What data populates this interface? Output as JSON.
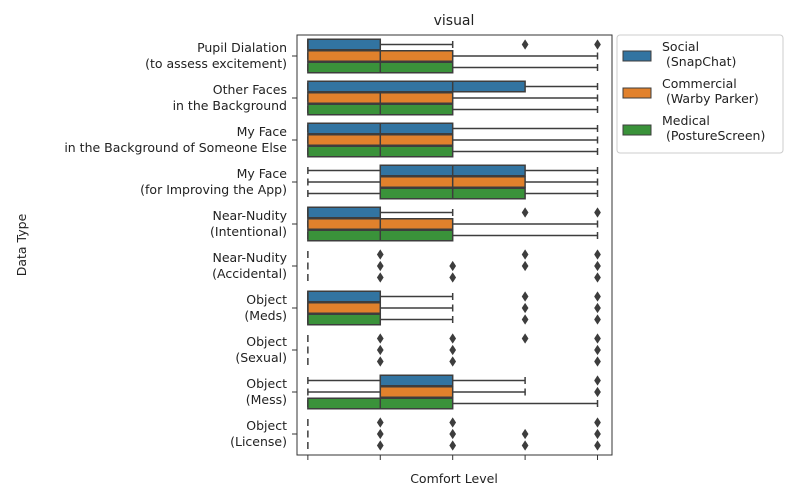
{
  "chart_data": {
    "type": "boxplot",
    "orientation": "horizontal",
    "title": "visual",
    "xlabel": "Comfort Level",
    "ylabel": "Data Type",
    "xlim": [
      0.85,
      5.2
    ],
    "xticks": [
      1,
      2,
      3,
      4,
      5
    ],
    "xtick_labels": [
      "",
      "",
      "",
      "",
      ""
    ],
    "grid": false,
    "legend_position": "outside-right",
    "series": [
      {
        "name": "Social\n (SnapChat)",
        "color": "#3274a1"
      },
      {
        "name": "Commercial\n (Warby Parker)",
        "color": "#e1812c"
      },
      {
        "name": "Medical\n (PostureScreen)",
        "color": "#3a923a"
      }
    ],
    "categories": [
      {
        "label": "Pupil Dialation\n(to assess excitement)",
        "boxes": [
          {
            "whisker_low": 1,
            "q1": 1,
            "median": 1,
            "q3": 2,
            "whisker_high": 3,
            "fliers": [
              4,
              5
            ]
          },
          {
            "whisker_low": 1,
            "q1": 1,
            "median": 2,
            "q3": 3,
            "whisker_high": 5,
            "fliers": []
          },
          {
            "whisker_low": 1,
            "q1": 1,
            "median": 2,
            "q3": 3,
            "whisker_high": 5,
            "fliers": []
          }
        ]
      },
      {
        "label": "Other Faces\nin the Background",
        "boxes": [
          {
            "whisker_low": 1,
            "q1": 1,
            "median": 3,
            "q3": 4,
            "whisker_high": 5,
            "fliers": []
          },
          {
            "whisker_low": 1,
            "q1": 1,
            "median": 2,
            "q3": 3,
            "whisker_high": 5,
            "fliers": []
          },
          {
            "whisker_low": 1,
            "q1": 1,
            "median": 2,
            "q3": 3,
            "whisker_high": 5,
            "fliers": []
          }
        ]
      },
      {
        "label": "My Face\n in the Background of Someone Else",
        "boxes": [
          {
            "whisker_low": 1,
            "q1": 1,
            "median": 2,
            "q3": 3,
            "whisker_high": 5,
            "fliers": []
          },
          {
            "whisker_low": 1,
            "q1": 1,
            "median": 2,
            "q3": 3,
            "whisker_high": 5,
            "fliers": []
          },
          {
            "whisker_low": 1,
            "q1": 1,
            "median": 2,
            "q3": 3,
            "whisker_high": 5,
            "fliers": []
          }
        ]
      },
      {
        "label": "My Face\n(for Improving the App)",
        "boxes": [
          {
            "whisker_low": 1,
            "q1": 2,
            "median": 3,
            "q3": 4,
            "whisker_high": 5,
            "fliers": []
          },
          {
            "whisker_low": 1,
            "q1": 2,
            "median": 3,
            "q3": 4,
            "whisker_high": 5,
            "fliers": []
          },
          {
            "whisker_low": 1,
            "q1": 2,
            "median": 3,
            "q3": 4,
            "whisker_high": 5,
            "fliers": []
          }
        ]
      },
      {
        "label": "Near-Nudity\n(Intentional)",
        "boxes": [
          {
            "whisker_low": 1,
            "q1": 1,
            "median": 1,
            "q3": 2,
            "whisker_high": 3,
            "fliers": [
              4,
              5
            ]
          },
          {
            "whisker_low": 1,
            "q1": 1,
            "median": 2,
            "q3": 3,
            "whisker_high": 5,
            "fliers": []
          },
          {
            "whisker_low": 1,
            "q1": 1,
            "median": 2,
            "q3": 3,
            "whisker_high": 5,
            "fliers": []
          }
        ]
      },
      {
        "label": "Near-Nudity\n(Accidental)",
        "boxes": [
          {
            "whisker_low": 1,
            "q1": 1,
            "median": 1,
            "q3": 1,
            "whisker_high": 1,
            "fliers": [
              2,
              4,
              5
            ]
          },
          {
            "whisker_low": 1,
            "q1": 1,
            "median": 1,
            "q3": 1,
            "whisker_high": 1,
            "fliers": [
              2,
              3,
              4,
              5
            ]
          },
          {
            "whisker_low": 1,
            "q1": 1,
            "median": 1,
            "q3": 1,
            "whisker_high": 1,
            "fliers": [
              2,
              3,
              5
            ]
          }
        ]
      },
      {
        "label": "Object\n(Meds)",
        "boxes": [
          {
            "whisker_low": 1,
            "q1": 1,
            "median": 1,
            "q3": 2,
            "whisker_high": 3,
            "fliers": [
              4,
              5
            ]
          },
          {
            "whisker_low": 1,
            "q1": 1,
            "median": 1,
            "q3": 2,
            "whisker_high": 3,
            "fliers": [
              4,
              5
            ]
          },
          {
            "whisker_low": 1,
            "q1": 1,
            "median": 1,
            "q3": 2,
            "whisker_high": 3,
            "fliers": [
              4,
              5
            ]
          }
        ]
      },
      {
        "label": "Object\n(Sexual)",
        "boxes": [
          {
            "whisker_low": 1,
            "q1": 1,
            "median": 1,
            "q3": 1,
            "whisker_high": 1,
            "fliers": [
              2,
              3,
              4,
              5
            ]
          },
          {
            "whisker_low": 1,
            "q1": 1,
            "median": 1,
            "q3": 1,
            "whisker_high": 1,
            "fliers": [
              2,
              3,
              5
            ]
          },
          {
            "whisker_low": 1,
            "q1": 1,
            "median": 1,
            "q3": 1,
            "whisker_high": 1,
            "fliers": [
              2,
              3,
              5
            ]
          }
        ]
      },
      {
        "label": "Object\n(Mess)",
        "boxes": [
          {
            "whisker_low": 1,
            "q1": 2,
            "median": 2,
            "q3": 3,
            "whisker_high": 4,
            "fliers": [
              5
            ]
          },
          {
            "whisker_low": 1,
            "q1": 2,
            "median": 2,
            "q3": 3,
            "whisker_high": 4,
            "fliers": [
              5
            ]
          },
          {
            "whisker_low": 1,
            "q1": 1,
            "median": 2,
            "q3": 3,
            "whisker_high": 5,
            "fliers": []
          }
        ]
      },
      {
        "label": "Object\n(License)",
        "boxes": [
          {
            "whisker_low": 1,
            "q1": 1,
            "median": 1,
            "q3": 1,
            "whisker_high": 1,
            "fliers": [
              2,
              3,
              5
            ]
          },
          {
            "whisker_low": 1,
            "q1": 1,
            "median": 1,
            "q3": 1,
            "whisker_high": 1,
            "fliers": [
              2,
              3,
              4,
              5
            ]
          },
          {
            "whisker_low": 1,
            "q1": 1,
            "median": 1,
            "q3": 1,
            "whisker_high": 1,
            "fliers": [
              2,
              3,
              4,
              5
            ]
          }
        ]
      }
    ]
  }
}
